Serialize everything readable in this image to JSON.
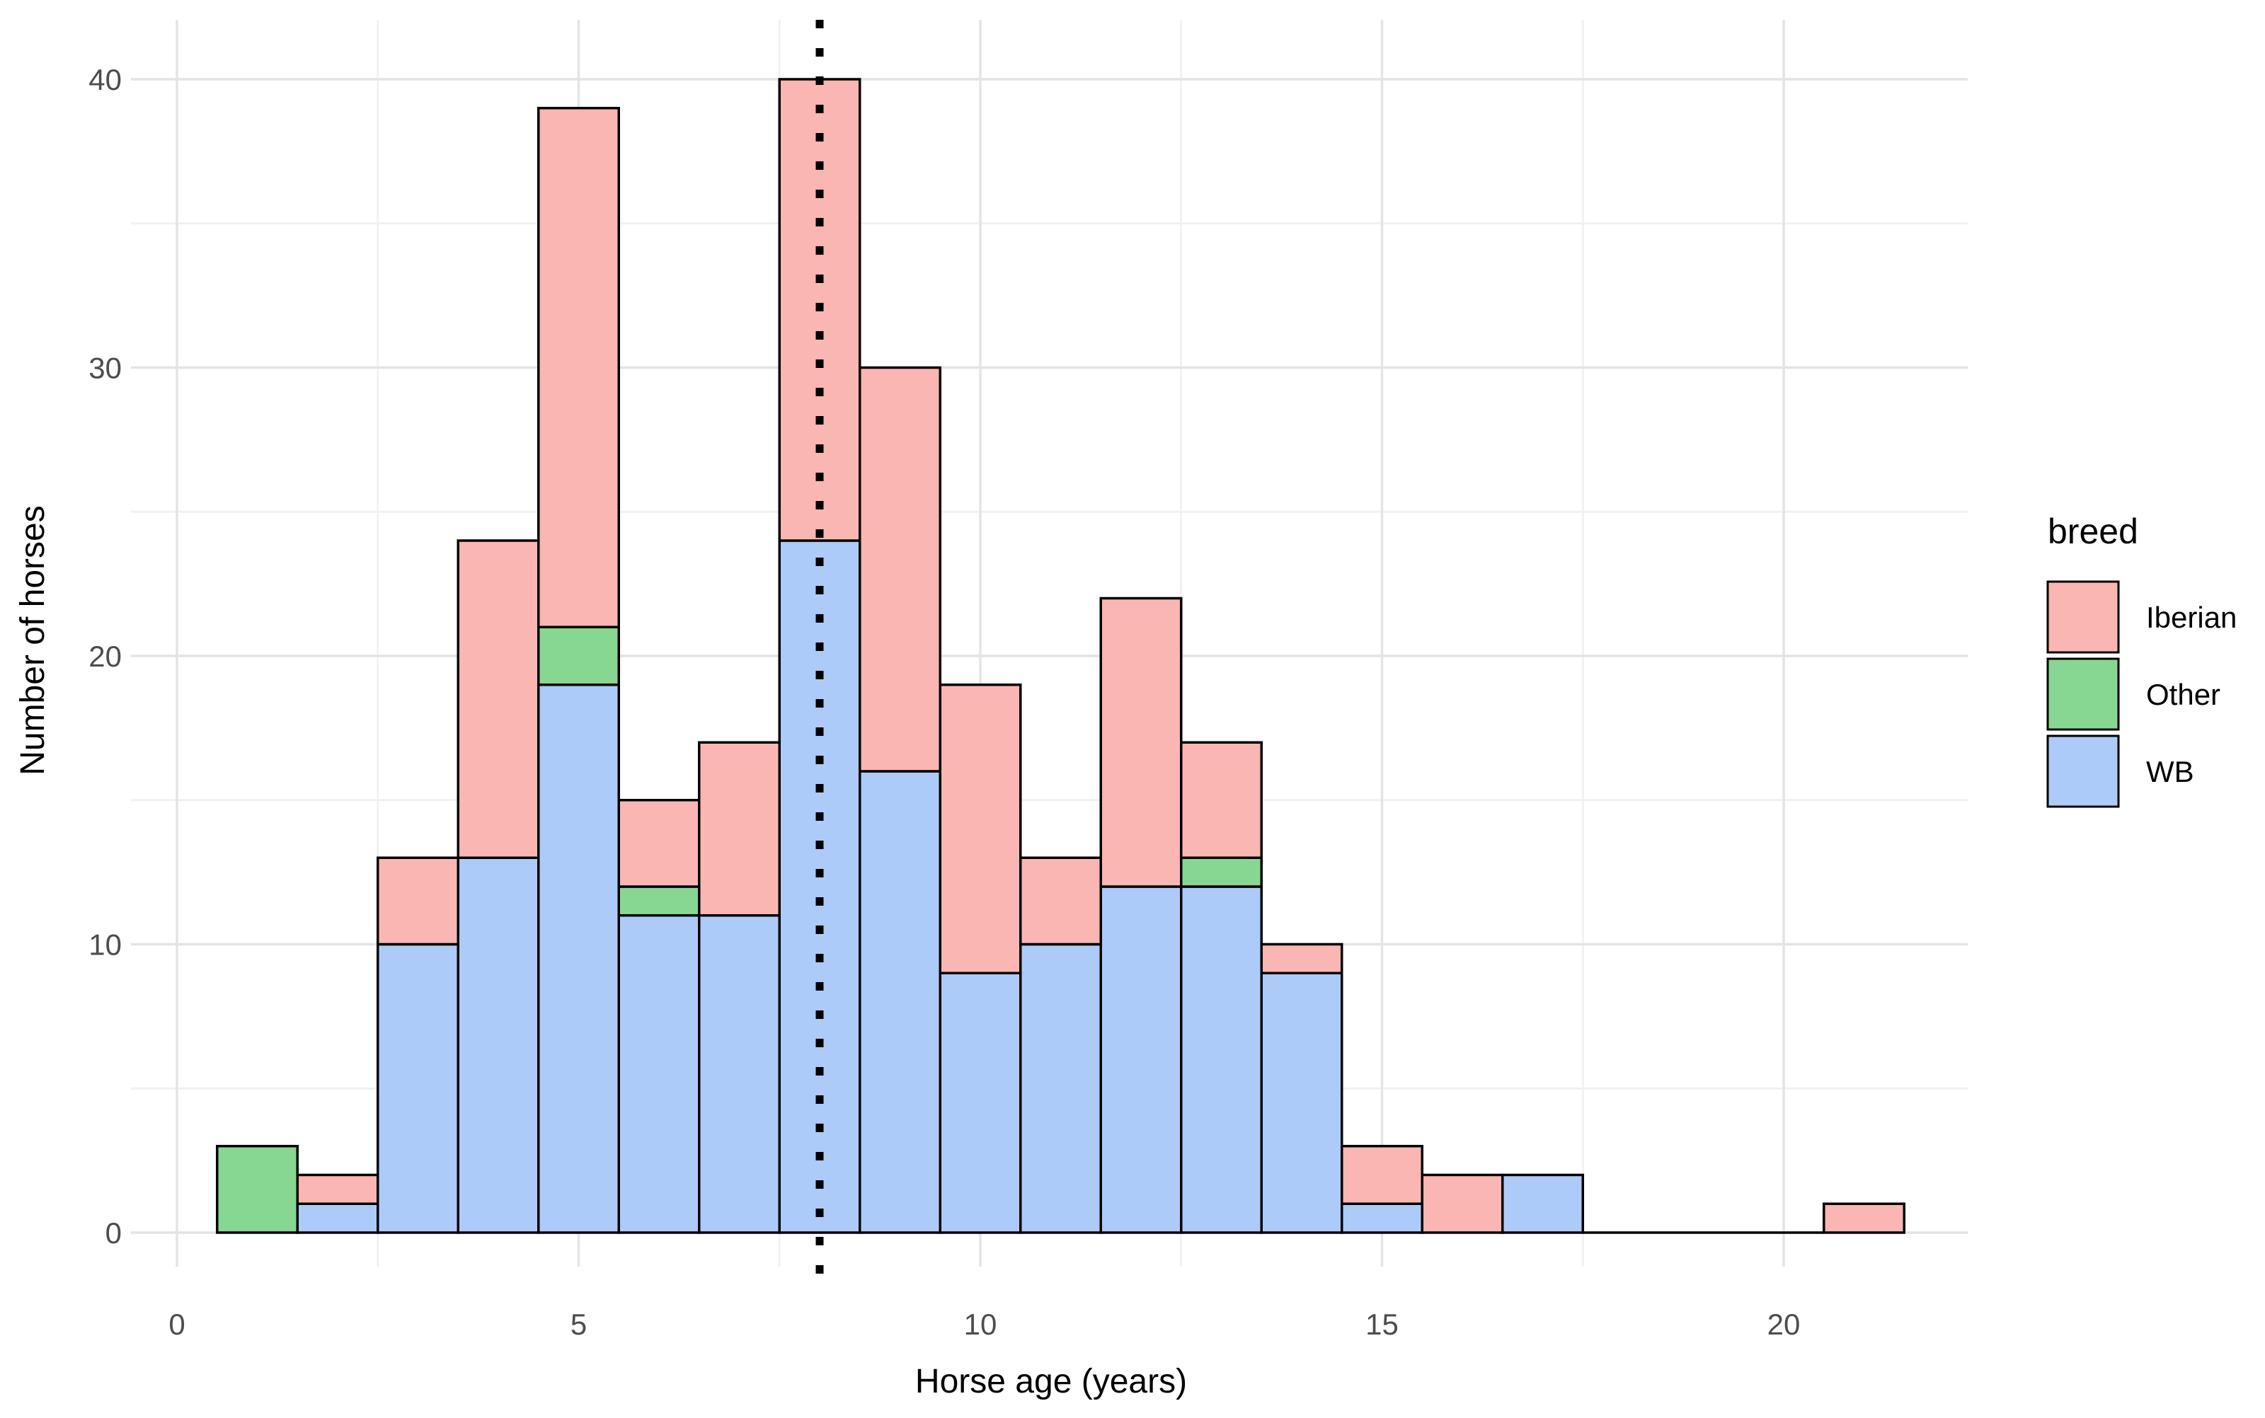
{
  "chart_data": {
    "type": "bar",
    "subtype": "stacked-histogram",
    "title": "",
    "xlabel": "Horse age (years)",
    "ylabel": "Number of horses",
    "x_tick_labels": [
      "0",
      "5",
      "10",
      "15",
      "20"
    ],
    "x_tick_values": [
      0,
      5,
      10,
      15,
      20
    ],
    "y_tick_labels": [
      "0",
      "10",
      "20",
      "30",
      "40"
    ],
    "y_tick_values": [
      0,
      10,
      20,
      30,
      40
    ],
    "xlim": [
      -0.6,
      22.3
    ],
    "ylim": [
      0,
      40
    ],
    "grid": true,
    "bin_width": 1,
    "bin_centers": [
      1,
      2,
      3,
      4,
      5,
      6,
      7,
      8,
      9,
      10,
      11,
      12,
      13,
      14,
      15,
      16,
      17,
      21
    ],
    "stack_order_bottom_to_top": [
      "WB",
      "Other",
      "Iberian"
    ],
    "series": [
      {
        "name": "Iberian",
        "color": "#FAB6B2",
        "values": [
          0,
          1,
          3,
          11,
          18,
          3,
          6,
          16,
          14,
          10,
          3,
          10,
          4,
          1,
          2,
          2,
          0,
          1
        ]
      },
      {
        "name": "Other",
        "color": "#87D792",
        "values": [
          3,
          0,
          0,
          0,
          2,
          1,
          0,
          0,
          0,
          0,
          0,
          0,
          1,
          0,
          0,
          0,
          0,
          0
        ]
      },
      {
        "name": "WB",
        "color": "#ADCBF8",
        "values": [
          0,
          1,
          10,
          13,
          19,
          11,
          11,
          24,
          16,
          9,
          10,
          12,
          12,
          9,
          1,
          0,
          2,
          0
        ]
      }
    ],
    "bar_totals": [
      3,
      2,
      13,
      24,
      39,
      15,
      17,
      40,
      30,
      19,
      13,
      22,
      17,
      10,
      3,
      2,
      2,
      1
    ],
    "empty_bins_at_zero": [
      18,
      19,
      20
    ],
    "vline": {
      "x": 8,
      "style": "dotted",
      "color": "#000000"
    },
    "bar_border_color": "#000000",
    "gridline_major_color": "#e4e4e4",
    "gridline_minor_color": "#f1f1f1",
    "axis_text_color": "#4d4d4d",
    "legend": {
      "title": "breed",
      "position": "right",
      "items": [
        {
          "label": "Iberian",
          "color": "#FAB6B2"
        },
        {
          "label": "Other",
          "color": "#87D792"
        },
        {
          "label": "WB",
          "color": "#ADCBF8"
        }
      ]
    }
  }
}
